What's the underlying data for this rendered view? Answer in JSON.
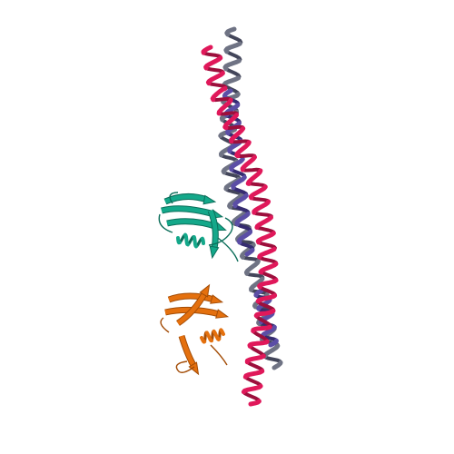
{
  "scene": {
    "background": "#ffffff",
    "chains": [
      {
        "id": "helix-magenta",
        "color": "#e0185a",
        "shade": "#9c0f3c"
      },
      {
        "id": "helix-gray",
        "color": "#6f7384",
        "shade": "#43465a"
      },
      {
        "id": "helix-purple",
        "color": "#5b4ea6",
        "shade": "#352c70"
      },
      {
        "id": "domain-teal",
        "color": "#14a88a",
        "shade": "#0c6e5a"
      },
      {
        "id": "domain-orange",
        "color": "#e4700e",
        "shade": "#a34c06"
      }
    ]
  }
}
